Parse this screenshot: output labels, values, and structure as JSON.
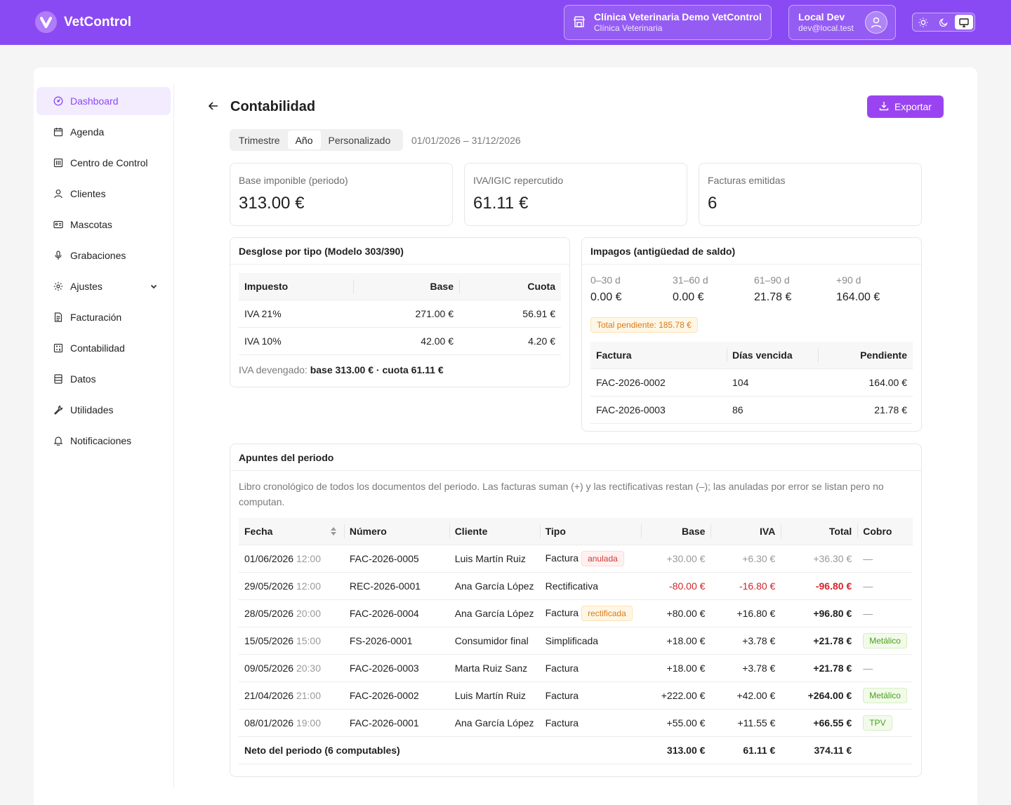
{
  "app": {
    "name": "VetControl"
  },
  "clinic": {
    "name": "Clínica Veterinaria Demo VetControl",
    "type": "Clínica Veterinaria"
  },
  "user": {
    "name": "Local Dev",
    "email": "dev@local.test"
  },
  "theme": {
    "options": [
      "sun-icon",
      "moon-icon",
      "monitor-icon"
    ],
    "selected": "monitor-icon"
  },
  "colors": {
    "brand": "#8a4af3",
    "accent": "#9a44f1",
    "negative": "#d1252a"
  },
  "sidebar": {
    "items": [
      {
        "label": "Dashboard",
        "icon": "dashboard-icon",
        "active": true
      },
      {
        "label": "Agenda",
        "icon": "calendar-icon"
      },
      {
        "label": "Centro de Control",
        "icon": "control-panel-icon"
      },
      {
        "label": "Clientes",
        "icon": "user-icon"
      },
      {
        "label": "Mascotas",
        "icon": "id-card-icon"
      },
      {
        "label": "Grabaciones",
        "icon": "microphone-icon"
      },
      {
        "label": "Ajustes",
        "icon": "gear-icon",
        "expandable": true
      },
      {
        "label": "Facturación",
        "icon": "document-icon"
      },
      {
        "label": "Contabilidad",
        "icon": "calculator-icon"
      },
      {
        "label": "Datos",
        "icon": "database-icon"
      },
      {
        "label": "Utilidades",
        "icon": "wrench-icon"
      },
      {
        "label": "Notificaciones",
        "icon": "bell-icon"
      }
    ]
  },
  "page": {
    "title": "Contabilidad",
    "export_label": "Exportar",
    "period_tabs": [
      {
        "label": "Trimestre"
      },
      {
        "label": "Año",
        "active": true
      },
      {
        "label": "Personalizado"
      }
    ],
    "date_range": "01/01/2026 – 31/12/2026"
  },
  "stats": [
    {
      "label": "Base imponible (periodo)",
      "value": "313.00 €"
    },
    {
      "label": "IVA/IGIC repercutido",
      "value": "61.11 €"
    },
    {
      "label": "Facturas emitidas",
      "value": "6"
    }
  ],
  "breakdown": {
    "title": "Desglose por tipo (Modelo 303/390)",
    "columns": [
      "Impuesto",
      "Base",
      "Cuota"
    ],
    "rows": [
      {
        "tax": "IVA 21%",
        "base": "271.00 €",
        "quota": "56.91 €"
      },
      {
        "tax": "IVA 10%",
        "base": "42.00 €",
        "quota": "4.20 €"
      }
    ],
    "footer_label": "IVA devengado:",
    "footer_value": "base 313.00 € · cuota 61.11 €"
  },
  "aging": {
    "title": "Impagos (antigüedad de saldo)",
    "buckets": [
      {
        "label": "0–30 d",
        "value": "0.00 €"
      },
      {
        "label": "31–60 d",
        "value": "0.00 €"
      },
      {
        "label": "61–90 d",
        "value": "21.78 €"
      },
      {
        "label": "+90 d",
        "value": "164.00 €",
        "overdue": true
      }
    ],
    "pending": "Total pendiente: 185.78 €",
    "columns": [
      "Factura",
      "Días vencida",
      "Pendiente"
    ],
    "rows": [
      {
        "invoice": "FAC-2026-0002",
        "days": "104",
        "pending": "164.00 €"
      },
      {
        "invoice": "FAC-2026-0003",
        "days": "86",
        "pending": "21.78 €"
      }
    ]
  },
  "ledger": {
    "title": "Apuntes del periodo",
    "description": "Libro cronológico de todos los documentos del periodo. Las facturas suman (+) y las rectificativas restan (–); las anuladas por error se listan pero no computan.",
    "columns": [
      "Fecha",
      "Número",
      "Cliente",
      "Tipo",
      "Base",
      "IVA",
      "Total",
      "Cobro"
    ],
    "rows": [
      {
        "date": "01/06/2026",
        "time": "12:00",
        "number": "FAC-2026-0005",
        "client": "Luis Martín Ruiz",
        "type": "Factura",
        "badge": "anulada",
        "badge_style": "red",
        "base": "+30.00 €",
        "vat": "+6.30 €",
        "total": "+36.30 €",
        "payment": "—",
        "style": "muted"
      },
      {
        "date": "29/05/2026",
        "time": "12:00",
        "number": "REC-2026-0001",
        "client": "Ana García López",
        "type": "Rectificativa",
        "badge": "",
        "base": "-80.00 €",
        "vat": "-16.80 €",
        "total": "-96.80 €",
        "payment": "—",
        "style": "neg"
      },
      {
        "date": "28/05/2026",
        "time": "20:00",
        "number": "FAC-2026-0004",
        "client": "Ana García López",
        "type": "Factura",
        "badge": "rectificada",
        "badge_style": "orange",
        "base": "+80.00 €",
        "vat": "+16.80 €",
        "total": "+96.80 €",
        "payment": "—",
        "style": ""
      },
      {
        "date": "15/05/2026",
        "time": "15:00",
        "number": "FS-2026-0001",
        "client": "Consumidor final",
        "type": "Simplificada",
        "badge": "",
        "base": "+18.00 €",
        "vat": "+3.78 €",
        "total": "+21.78 €",
        "payment": "Metálico",
        "style": ""
      },
      {
        "date": "09/05/2026",
        "time": "20:30",
        "number": "FAC-2026-0003",
        "client": "Marta Ruiz Sanz",
        "type": "Factura",
        "badge": "",
        "base": "+18.00 €",
        "vat": "+3.78 €",
        "total": "+21.78 €",
        "payment": "—",
        "style": ""
      },
      {
        "date": "21/04/2026",
        "time": "21:00",
        "number": "FAC-2026-0002",
        "client": "Luis Martín Ruiz",
        "type": "Factura",
        "badge": "",
        "base": "+222.00 €",
        "vat": "+42.00 €",
        "total": "+264.00 €",
        "payment": "Metálico",
        "style": ""
      },
      {
        "date": "08/01/2026",
        "time": "19:00",
        "number": "FAC-2026-0001",
        "client": "Ana García López",
        "type": "Factura",
        "badge": "",
        "base": "+55.00 €",
        "vat": "+11.55 €",
        "total": "+66.55 €",
        "payment": "TPV",
        "style": ""
      }
    ],
    "totals": {
      "label": "Neto del periodo (6 computables)",
      "base": "313.00 €",
      "vat": "61.11 €",
      "total": "374.11 €"
    }
  }
}
